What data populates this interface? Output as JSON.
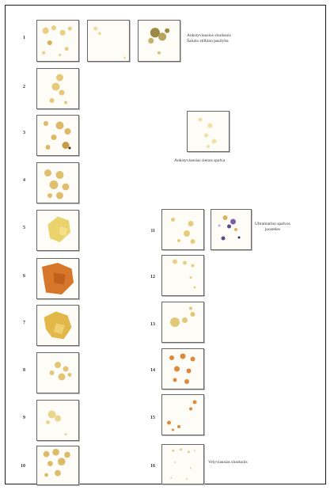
{
  "labels": {
    "caption_1_line1": "Ankstyviausios sluoksnis",
    "caption_1_line2": "Šalutis stilbino pasilyba",
    "caption_2": "Ankstyviausias sienos spalva",
    "caption_3_line1": "Ultramarino spalvos",
    "caption_3_line2": "juosteles",
    "caption_4": "Velyviausias sluoksnis"
  },
  "rows_left": [
    {
      "num": "1"
    },
    {
      "num": "2"
    },
    {
      "num": "3"
    },
    {
      "num": "4"
    },
    {
      "num": "5"
    },
    {
      "num": "6"
    },
    {
      "num": "7"
    },
    {
      "num": "8"
    },
    {
      "num": "9"
    },
    {
      "num": "10"
    }
  ],
  "rows_right": [
    {
      "num": "11"
    },
    {
      "num": "12"
    },
    {
      "num": "13"
    },
    {
      "num": "14"
    },
    {
      "num": "15"
    },
    {
      "num": "16"
    }
  ],
  "colors": {
    "pale_ochre": "#e9cf86",
    "ochre": "#d9b35a",
    "deep_orange": "#d6762a",
    "olive": "#9c8a46",
    "ultramarine": "#5b4a8c",
    "border": "#666666"
  }
}
